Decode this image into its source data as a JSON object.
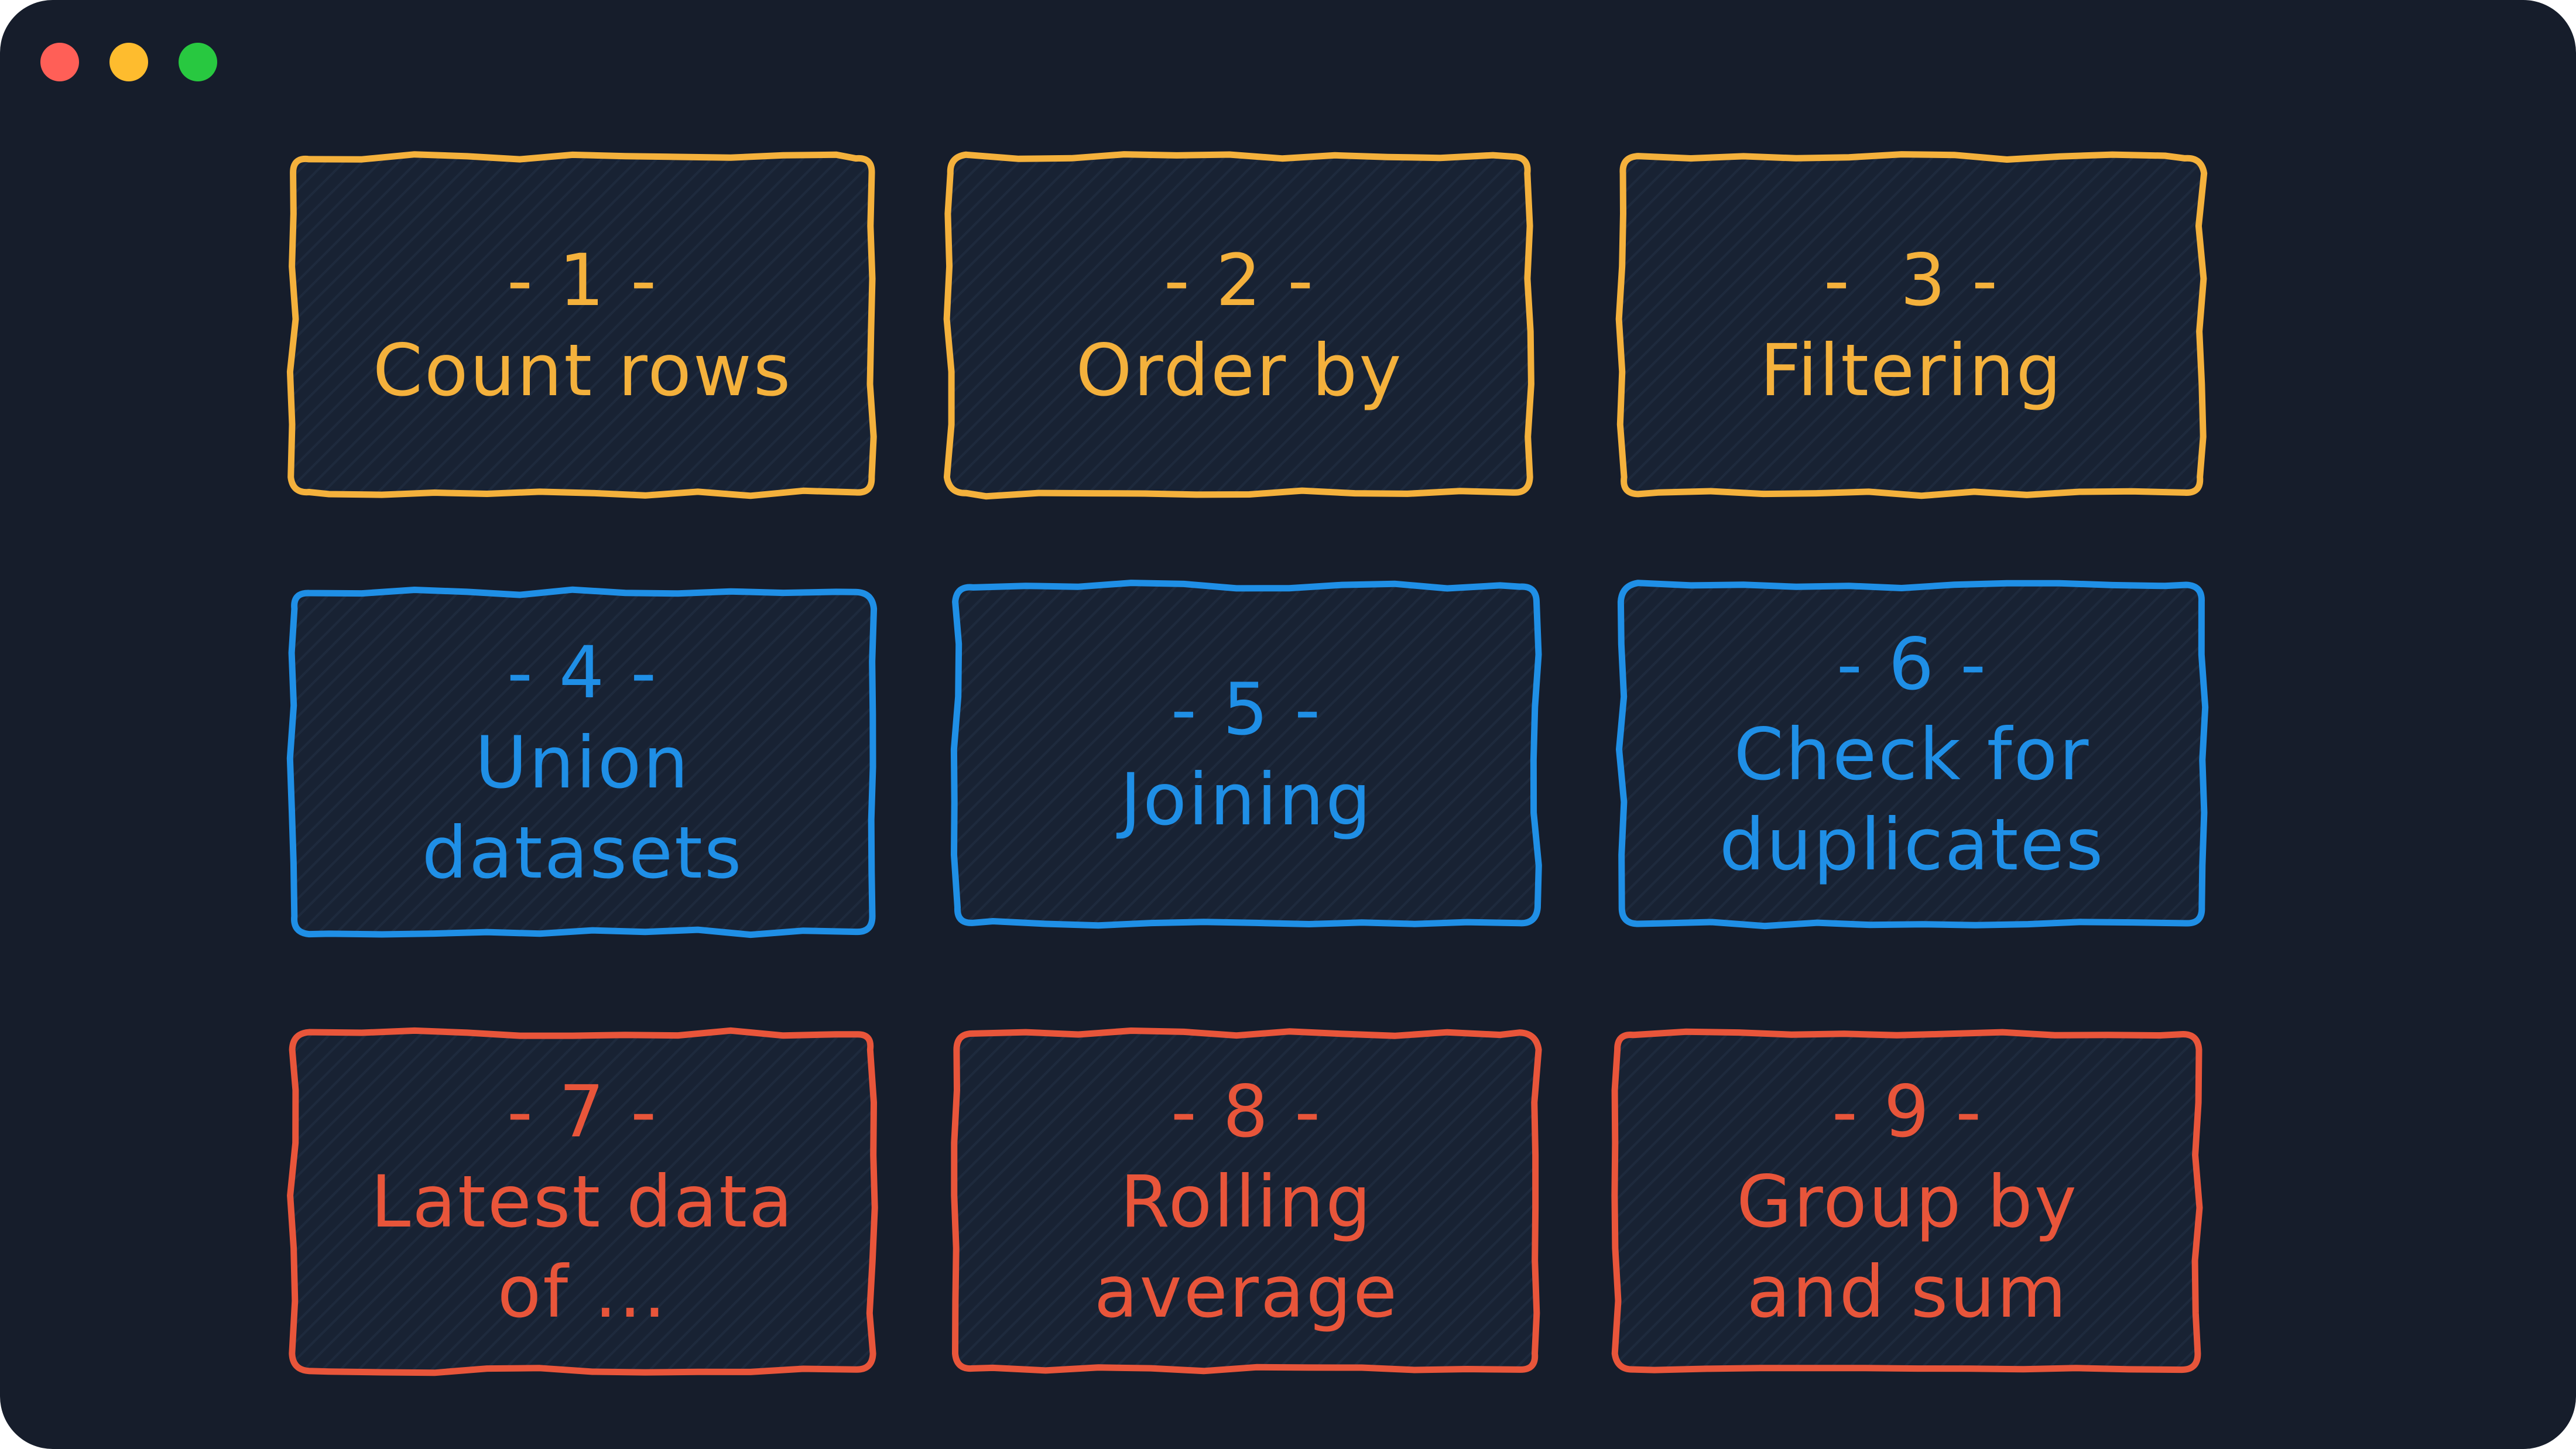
{
  "window": {
    "background": "#161d2b",
    "traffic_lights": [
      {
        "name": "close",
        "color": "#ff5f57"
      },
      {
        "name": "minimize",
        "color": "#febc2e"
      },
      {
        "name": "zoom",
        "color": "#28c840"
      }
    ]
  },
  "colors": {
    "orange": "#f4b13c",
    "blue": "#1f8fe6",
    "red": "#e8553a",
    "card_fill": "#182233"
  },
  "cards": [
    {
      "number": "- 1 -",
      "lines": [
        "Count rows"
      ],
      "color": "orange"
    },
    {
      "number": "- 2 -",
      "lines": [
        "Order by"
      ],
      "color": "orange"
    },
    {
      "number": "-  3 -",
      "lines": [
        "Filtering"
      ],
      "color": "orange"
    },
    {
      "number": "- 4 -",
      "lines": [
        "Union",
        "datasets"
      ],
      "color": "blue"
    },
    {
      "number": "- 5 -",
      "lines": [
        "Joining"
      ],
      "color": "blue"
    },
    {
      "number": "- 6 -",
      "lines": [
        "Check for",
        "duplicates"
      ],
      "color": "blue"
    },
    {
      "number": "- 7 -",
      "lines": [
        "Latest data",
        "of ..."
      ],
      "color": "red"
    },
    {
      "number": "- 8 -",
      "lines": [
        "Rolling",
        "average"
      ],
      "color": "red"
    },
    {
      "number": "- 9 -",
      "lines": [
        "Group by",
        "and sum"
      ],
      "color": "red"
    }
  ]
}
